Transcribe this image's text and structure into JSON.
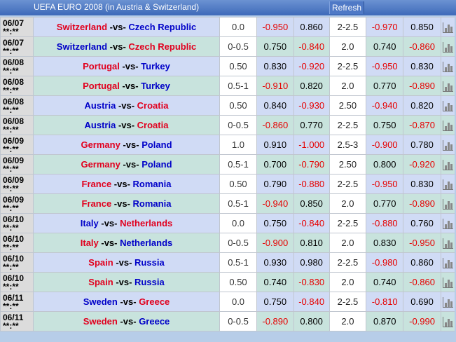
{
  "header": {
    "title": "UEFA EURO 2008 (in Austria & Switzerland)",
    "refresh_label": "Refresh"
  },
  "rows": [
    {
      "date": "06/07",
      "time": "**:**",
      "home": "Switzerland",
      "away": "Czech Republic",
      "fav": "home",
      "hcap": "0.0",
      "h1": "-0.950",
      "h2": "0.860",
      "ou": "2-2.5",
      "o1": "-0.970",
      "o2": "0.850"
    },
    {
      "date": "06/07",
      "time": "**:**",
      "home": "Switzerland",
      "away": "Czech Republic",
      "fav": "away",
      "hcap": "0-0.5",
      "h1": "0.750",
      "h2": "-0.840",
      "ou": "2.0",
      "o1": "0.740",
      "o2": "-0.860"
    },
    {
      "date": "06/08",
      "time": "**:**",
      "home": "Portugal",
      "away": "Turkey",
      "fav": "home",
      "hcap": "0.50",
      "h1": "0.830",
      "h2": "-0.920",
      "ou": "2-2.5",
      "o1": "-0.950",
      "o2": "0.830"
    },
    {
      "date": "06/08",
      "time": "**:**",
      "home": "Portugal",
      "away": "Turkey",
      "fav": "home",
      "hcap": "0.5-1",
      "h1": "-0.910",
      "h2": "0.820",
      "ou": "2.0",
      "o1": "0.770",
      "o2": "-0.890"
    },
    {
      "date": "06/08",
      "time": "**:**",
      "home": "Austria",
      "away": "Croatia",
      "fav": "away",
      "hcap": "0.50",
      "h1": "0.840",
      "h2": "-0.930",
      "ou": "2.50",
      "o1": "-0.940",
      "o2": "0.820"
    },
    {
      "date": "06/08",
      "time": "**:**",
      "home": "Austria",
      "away": "Croatia",
      "fav": "away",
      "hcap": "0-0.5",
      "h1": "-0.860",
      "h2": "0.770",
      "ou": "2-2.5",
      "o1": "0.750",
      "o2": "-0.870"
    },
    {
      "date": "06/09",
      "time": "**:**",
      "home": "Germany",
      "away": "Poland",
      "fav": "home",
      "hcap": "1.0",
      "h1": "0.910",
      "h2": "-1.000",
      "ou": "2.5-3",
      "o1": "-0.900",
      "o2": "0.780"
    },
    {
      "date": "06/09",
      "time": "**:**",
      "home": "Germany",
      "away": "Poland",
      "fav": "home",
      "hcap": "0.5-1",
      "h1": "0.700",
      "h2": "-0.790",
      "ou": "2.50",
      "o1": "0.800",
      "o2": "-0.920"
    },
    {
      "date": "06/09",
      "time": "**:**",
      "home": "France",
      "away": "Romania",
      "fav": "home",
      "hcap": "0.50",
      "h1": "0.790",
      "h2": "-0.880",
      "ou": "2-2.5",
      "o1": "-0.950",
      "o2": "0.830"
    },
    {
      "date": "06/09",
      "time": "**:**",
      "home": "France",
      "away": "Romania",
      "fav": "home",
      "hcap": "0.5-1",
      "h1": "-0.940",
      "h2": "0.850",
      "ou": "2.0",
      "o1": "0.770",
      "o2": "-0.890"
    },
    {
      "date": "06/10",
      "time": "**:**",
      "home": "Italy",
      "away": "Netherlands",
      "fav": "away",
      "hcap": "0.0",
      "h1": "0.750",
      "h2": "-0.840",
      "ou": "2-2.5",
      "o1": "-0.880",
      "o2": "0.760"
    },
    {
      "date": "06/10",
      "time": "**:**",
      "home": "Italy",
      "away": "Netherlands",
      "fav": "home",
      "hcap": "0-0.5",
      "h1": "-0.900",
      "h2": "0.810",
      "ou": "2.0",
      "o1": "0.830",
      "o2": "-0.950"
    },
    {
      "date": "06/10",
      "time": "**:**",
      "home": "Spain",
      "away": "Russia",
      "fav": "home",
      "hcap": "0.5-1",
      "h1": "0.930",
      "h2": "0.980",
      "ou": "2-2.5",
      "o1": "-0.980",
      "o2": "0.860"
    },
    {
      "date": "06/10",
      "time": "**:**",
      "home": "Spain",
      "away": "Russia",
      "fav": "home",
      "hcap": "0.50",
      "h1": "0.740",
      "h2": "-0.830",
      "ou": "2.0",
      "o1": "0.740",
      "o2": "-0.860"
    },
    {
      "date": "06/11",
      "time": "**:**",
      "home": "Sweden",
      "away": "Greece",
      "fav": "away",
      "hcap": "0.0",
      "h1": "0.750",
      "h2": "-0.840",
      "ou": "2-2.5",
      "o1": "-0.810",
      "o2": "0.690"
    },
    {
      "date": "06/11",
      "time": "**:**",
      "home": "Sweden",
      "away": "Greece",
      "fav": "home",
      "hcap": "0-0.5",
      "h1": "-0.890",
      "h2": "0.800",
      "ou": "2.0",
      "o1": "0.870",
      "o2": "-0.990"
    }
  ],
  "labels": {
    "vs": "-vs-"
  },
  "icons": {
    "chart": "bar-chart-icon"
  },
  "colors": {
    "favorite": "#e1001e",
    "underdog": "#0000c8",
    "negative": "#e60000",
    "header": "#3e6ab9"
  }
}
